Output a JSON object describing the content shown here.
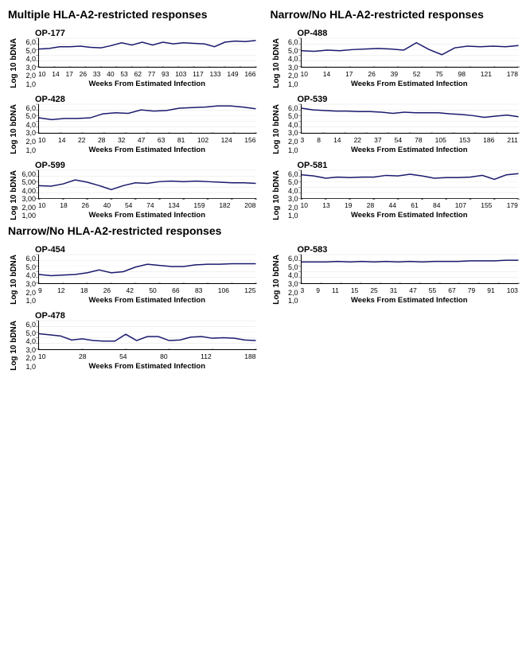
{
  "global": {
    "ylabel": "Log 10 bDNA",
    "xlabel": "Weeks From Estimated Infection",
    "ymin": 1.0,
    "ymax": 6.0,
    "yticks": [
      "6,0",
      "5,0",
      "4,0",
      "3,0",
      "2,0",
      "1,0"
    ],
    "line_color": "#1a1a6e",
    "grid_color": "#c8c8c8",
    "axis_color": "#000000",
    "bg_color": "#ffffff",
    "title_fontsize": 11,
    "tick_fontsize": 9,
    "label_fontsize": 10
  },
  "headers": {
    "left1": "Multiple HLA-A2-restricted responses",
    "right1": "Narrow/No HLA-A2-restricted responses",
    "left2": "Narrow/No HLA-A2-restricted responses"
  },
  "panels": [
    {
      "id": "OP-177",
      "col": 0,
      "row": 0,
      "xlabels": [
        "10",
        "14",
        "17",
        "26",
        "33",
        "40",
        "53",
        "62",
        "77",
        "93",
        "103",
        "117",
        "133",
        "149",
        "166"
      ],
      "values": [
        4.1,
        4.2,
        4.5,
        4.5,
        4.6,
        4.4,
        4.3,
        4.7,
        5.2,
        4.8,
        5.3,
        4.8,
        5.3,
        5.0,
        5.2,
        5.1,
        5.0,
        4.5,
        5.3,
        5.5,
        5.4,
        5.6
      ]
    },
    {
      "id": "OP-488",
      "col": 1,
      "row": 0,
      "xlabels": [
        "10",
        "14",
        "17",
        "26",
        "39",
        "52",
        "75",
        "98",
        "121",
        "178"
      ],
      "values": [
        3.8,
        3.7,
        3.9,
        3.8,
        4.0,
        4.1,
        4.2,
        4.1,
        3.9,
        5.2,
        4.0,
        3.1,
        4.3,
        4.6,
        4.5,
        4.6,
        4.5,
        4.7
      ]
    },
    {
      "id": "OP-428",
      "col": 0,
      "row": 1,
      "xlabels": [
        "10",
        "14",
        "22",
        "28",
        "32",
        "47",
        "63",
        "81",
        "102",
        "124",
        "156"
      ],
      "values": [
        3.6,
        3.3,
        3.5,
        3.5,
        3.6,
        4.3,
        4.5,
        4.4,
        5.0,
        4.8,
        4.9,
        5.3,
        5.4,
        5.5,
        5.7,
        5.7,
        5.5,
        5.2
      ]
    },
    {
      "id": "OP-539",
      "col": 1,
      "row": 1,
      "xlabels": [
        "3",
        "8",
        "14",
        "22",
        "37",
        "54",
        "78",
        "105",
        "153",
        "186",
        "211"
      ],
      "values": [
        5.3,
        5.0,
        4.9,
        4.8,
        4.8,
        4.7,
        4.7,
        4.6,
        4.4,
        4.6,
        4.5,
        4.5,
        4.5,
        4.3,
        4.2,
        4.0,
        3.7,
        3.9,
        4.1,
        3.8
      ]
    },
    {
      "id": "OP-599",
      "col": 0,
      "row": 2,
      "xlabels": [
        "10",
        "18",
        "26",
        "40",
        "54",
        "74",
        "134",
        "159",
        "182",
        "208"
      ],
      "xlabel_override": "Weeks From Estimated Infection",
      "yticks_override": [
        "6,00",
        "5,00",
        "4,00",
        "3,00",
        "2,00",
        "1,00"
      ],
      "values": [
        3.3,
        3.2,
        3.6,
        4.3,
        3.9,
        3.3,
        2.6,
        3.3,
        3.8,
        3.7,
        4.0,
        4.1,
        4.0,
        4.1,
        4.0,
        3.9,
        3.8,
        3.8,
        3.7
      ]
    },
    {
      "id": "OP-581",
      "col": 1,
      "row": 2,
      "xlabels": [
        "10",
        "13",
        "19",
        "28",
        "44",
        "61",
        "84",
        "107",
        "155",
        "179"
      ],
      "values": [
        5.2,
        5.0,
        4.6,
        4.8,
        4.7,
        4.8,
        4.8,
        5.1,
        5.0,
        5.3,
        5.0,
        4.6,
        4.7,
        4.7,
        4.8,
        5.1,
        4.4,
        5.2,
        5.4
      ]
    },
    {
      "id": "OP-454",
      "col": 0,
      "row": 3,
      "xlabels": [
        "9",
        "12",
        "18",
        "26",
        "42",
        "50",
        "66",
        "83",
        "106",
        "125"
      ],
      "values": [
        2.5,
        2.3,
        2.4,
        2.5,
        2.8,
        3.3,
        2.8,
        3.0,
        3.8,
        4.3,
        4.1,
        3.9,
        3.9,
        4.2,
        4.3,
        4.3,
        4.4,
        4.4,
        4.4
      ]
    },
    {
      "id": "OP-583",
      "col": 1,
      "row": 3,
      "xlabels": [
        "3",
        "9",
        "11",
        "15",
        "25",
        "31",
        "47",
        "55",
        "67",
        "79",
        "91",
        "103"
      ],
      "values": [
        4.7,
        4.7,
        4.7,
        4.8,
        4.7,
        4.8,
        4.7,
        4.8,
        4.7,
        4.8,
        4.7,
        4.8,
        4.8,
        4.8,
        4.9,
        4.9,
        4.9,
        5.0,
        5.0
      ]
    },
    {
      "id": "OP-478",
      "col": 0,
      "row": 4,
      "xlabels": [
        "10",
        "28",
        "54",
        "80",
        "112",
        "188"
      ],
      "values": [
        3.7,
        3.5,
        3.3,
        2.6,
        2.8,
        2.5,
        2.4,
        2.4,
        3.6,
        2.5,
        3.2,
        3.2,
        2.5,
        2.6,
        3.1,
        3.2,
        2.9,
        3.0,
        2.9,
        2.6,
        2.5
      ]
    }
  ]
}
